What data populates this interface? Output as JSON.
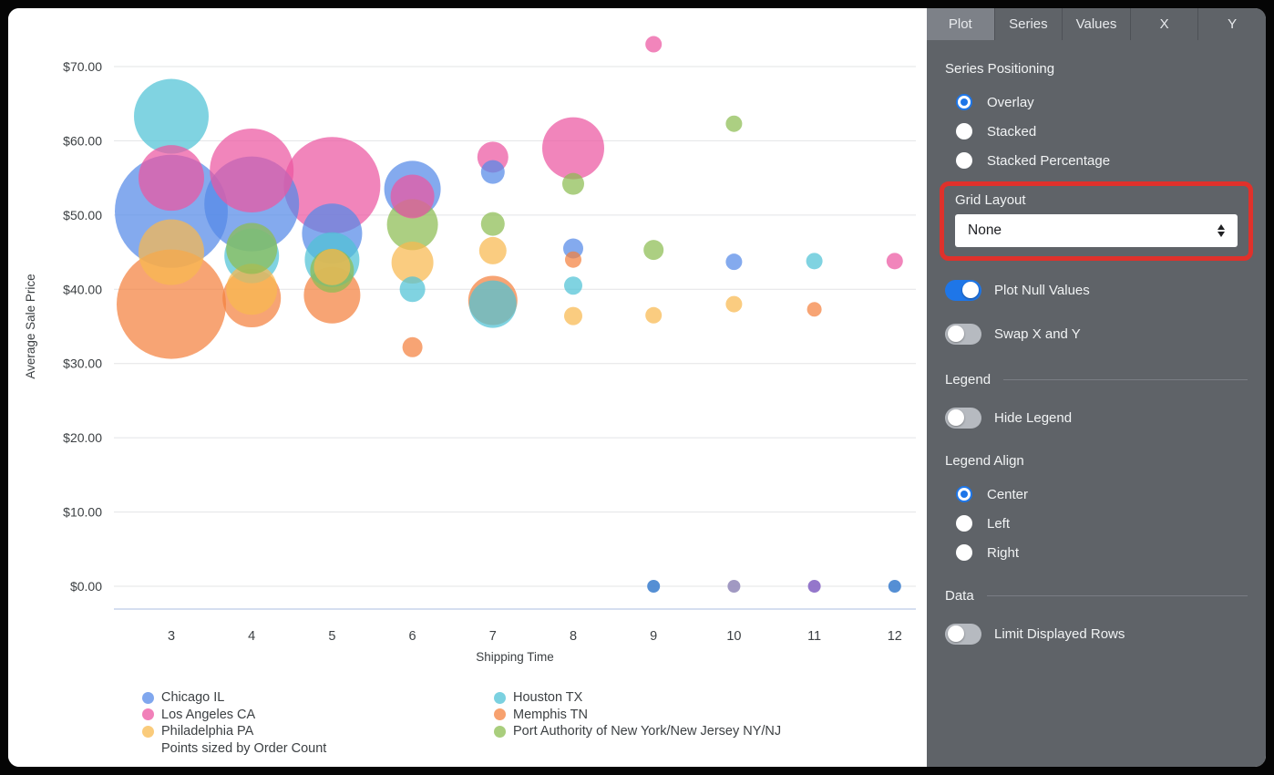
{
  "theme": {
    "accent": "#1E76E8",
    "highlight": "#E0312B",
    "panel_bg": "#5F6368",
    "panel_text": "#F1F3F4",
    "chart_text": "#3C4043",
    "grid_color": "#E3E4E6",
    "x_axis_line_color": "#C7D3EB"
  },
  "panel": {
    "tabs": [
      {
        "label": "Plot",
        "active": true
      },
      {
        "label": "Series",
        "active": false
      },
      {
        "label": "Values",
        "active": false
      },
      {
        "label": "X",
        "active": false
      },
      {
        "label": "Y",
        "active": false
      }
    ],
    "series_positioning": {
      "label": "Series Positioning",
      "options": [
        {
          "label": "Overlay",
          "selected": true
        },
        {
          "label": "Stacked",
          "selected": false
        },
        {
          "label": "Stacked Percentage",
          "selected": false
        }
      ]
    },
    "grid_layout": {
      "label": "Grid Layout",
      "value": "None",
      "highlighted": true
    },
    "plot_null_values": {
      "label": "Plot Null Values",
      "on": true
    },
    "swap_x_y": {
      "label": "Swap X and Y",
      "on": false
    },
    "legend_section": {
      "label": "Legend",
      "hide_legend": {
        "label": "Hide Legend",
        "on": false
      },
      "legend_align": {
        "label": "Legend Align",
        "options": [
          {
            "label": "Center",
            "selected": true
          },
          {
            "label": "Left",
            "selected": false
          },
          {
            "label": "Right",
            "selected": false
          }
        ]
      }
    },
    "data_section": {
      "label": "Data",
      "limit_rows": {
        "label": "Limit Displayed Rows",
        "on": false
      }
    }
  },
  "chart_data": {
    "type": "scatter",
    "subtype": "bubble",
    "xlabel": "Shipping Time",
    "ylabel": "Average Sale Price",
    "size_note": "Points sized by Order Count",
    "x_ticks": [
      3,
      4,
      5,
      6,
      7,
      8,
      9,
      10,
      11,
      12
    ],
    "y_ticks": [
      {
        "v": 0,
        "label": "$0.00"
      },
      {
        "v": 10,
        "label": "$10.00"
      },
      {
        "v": 20,
        "label": "$20.00"
      },
      {
        "v": 30,
        "label": "$30.00"
      },
      {
        "v": 40,
        "label": "$40.00"
      },
      {
        "v": 50,
        "label": "$50.00"
      },
      {
        "v": 60,
        "label": "$60.00"
      },
      {
        "v": 70,
        "label": "$70.00"
      }
    ],
    "xlim": [
      2.3,
      12.4
    ],
    "ylim": [
      0,
      77
    ],
    "legend_position": "bottom",
    "grid": true,
    "series": [
      {
        "name": "Chicago IL",
        "color": "#5589E8",
        "points": [
          {
            "x": 3,
            "y": 50.5,
            "r": 62
          },
          {
            "x": 4,
            "y": 51.5,
            "r": 52
          },
          {
            "x": 5,
            "y": 47.5,
            "r": 33
          },
          {
            "x": 6,
            "y": 53.5,
            "r": 31
          },
          {
            "x": 7,
            "y": 55.8,
            "r": 13
          },
          {
            "x": 8,
            "y": 45.5,
            "r": 11
          },
          {
            "x": 10,
            "y": 43.7,
            "r": 9
          }
        ]
      },
      {
        "name": "Los Angeles CA",
        "color": "#EC56A1",
        "points": [
          {
            "x": 3,
            "y": 55,
            "r": 36
          },
          {
            "x": 4,
            "y": 56,
            "r": 46
          },
          {
            "x": 5,
            "y": 54,
            "r": 53
          },
          {
            "x": 6,
            "y": 52.5,
            "r": 24
          },
          {
            "x": 7,
            "y": 57.8,
            "r": 17
          },
          {
            "x": 8,
            "y": 59,
            "r": 34
          },
          {
            "x": 9,
            "y": 73,
            "r": 9
          },
          {
            "x": 12,
            "y": 43.8,
            "r": 9
          }
        ]
      },
      {
        "name": "Philadelphia PA",
        "color": "#F8B94F",
        "points": [
          {
            "x": 3,
            "y": 45,
            "r": 36
          },
          {
            "x": 4,
            "y": 40,
            "r": 28
          },
          {
            "x": 5,
            "y": 43,
            "r": 20
          },
          {
            "x": 6,
            "y": 43.6,
            "r": 23
          },
          {
            "x": 7,
            "y": 45.2,
            "r": 15
          },
          {
            "x": 8,
            "y": 36.4,
            "r": 10
          },
          {
            "x": 9,
            "y": 36.5,
            "r": 9
          },
          {
            "x": 10,
            "y": 38,
            "r": 9
          }
        ]
      },
      {
        "name": "Houston TX",
        "color": "#4FC2D6",
        "points": [
          {
            "x": 3,
            "y": 63.3,
            "r": 41
          },
          {
            "x": 4,
            "y": 44.5,
            "r": 30
          },
          {
            "x": 5,
            "y": 44,
            "r": 30
          },
          {
            "x": 6,
            "y": 40,
            "r": 14
          },
          {
            "x": 7,
            "y": 38,
            "r": 26
          },
          {
            "x": 8,
            "y": 40.5,
            "r": 10
          },
          {
            "x": 11,
            "y": 43.8,
            "r": 9
          }
        ]
      },
      {
        "name": "Memphis TN",
        "color": "#F4813F",
        "points": [
          {
            "x": 3,
            "y": 38,
            "r": 60
          },
          {
            "x": 4,
            "y": 38.8,
            "r": 32
          },
          {
            "x": 5,
            "y": 39.2,
            "r": 31
          },
          {
            "x": 6,
            "y": 32.2,
            "r": 11
          },
          {
            "x": 7,
            "y": 38.5,
            "r": 27
          },
          {
            "x": 8,
            "y": 44,
            "r": 9
          },
          {
            "x": 11,
            "y": 37.3,
            "r": 8
          }
        ]
      },
      {
        "name": "Port Authority of New York/New Jersey NY/NJ",
        "color": "#8CBD52",
        "points": [
          {
            "x": 4,
            "y": 45.5,
            "r": 28
          },
          {
            "x": 5,
            "y": 42.5,
            "r": 24
          },
          {
            "x": 6,
            "y": 48.7,
            "r": 28
          },
          {
            "x": 7,
            "y": 48.8,
            "r": 13
          },
          {
            "x": 8,
            "y": 54.2,
            "r": 12
          },
          {
            "x": 9,
            "y": 45.3,
            "r": 11
          },
          {
            "x": 10,
            "y": 62.3,
            "r": 9
          }
        ]
      }
    ],
    "zero_points": [
      {
        "x": 9,
        "y": 0,
        "r": 7,
        "color": "#4C89D2"
      },
      {
        "x": 10,
        "y": 0,
        "r": 7,
        "color": "#9C93BF"
      },
      {
        "x": 11,
        "y": 0,
        "r": 7,
        "color": "#8E70C8"
      },
      {
        "x": 12,
        "y": 0,
        "r": 7,
        "color": "#4C89D2"
      }
    ]
  }
}
